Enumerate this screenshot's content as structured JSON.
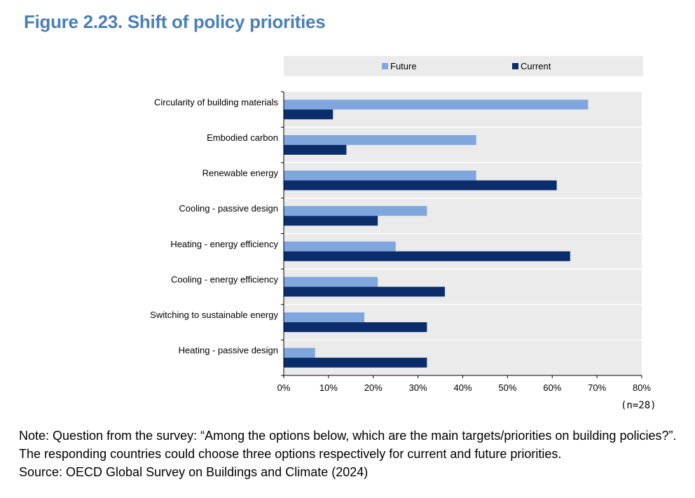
{
  "title": "Figure 2.23. Shift of policy priorities",
  "colors": {
    "future": "#7fa6dd",
    "current": "#0b2d6b",
    "title": "#4a7fb8",
    "plot_bg": "#ebebeb",
    "legend_bg": "#ebebeb"
  },
  "chart_data": {
    "type": "bar",
    "orientation": "horizontal",
    "categories": [
      "Circularity of building materials",
      "Embodied carbon",
      "Renewable energy",
      "Cooling - passive design",
      "Heating - energy efficiency",
      "Cooling - energy efficiency",
      "Switching to sustainable energy",
      "Heating - passive design"
    ],
    "series": [
      {
        "name": "Future",
        "values": [
          68,
          43,
          43,
          32,
          25,
          21,
          18,
          7
        ]
      },
      {
        "name": "Current",
        "values": [
          11,
          14,
          61,
          21,
          64,
          36,
          32,
          32
        ]
      }
    ],
    "xlim": [
      0,
      80
    ],
    "xticks": [
      "0%",
      "10%",
      "20%",
      "30%",
      "40%",
      "50%",
      "60%",
      "70%",
      "80%"
    ],
    "legend": [
      "Future",
      "Current"
    ],
    "legend_position": "top",
    "xlabel": "",
    "ylabel": ""
  },
  "sample_size": "(n=28)",
  "notes": [
    "Note: Question from the survey: “Among the options below, which are the main targets/priorities on building policies?”.",
    "The responding countries could choose three options respectively for current and future priorities.",
    "Source: OECD Global Survey on Buildings and Climate (2024)"
  ]
}
